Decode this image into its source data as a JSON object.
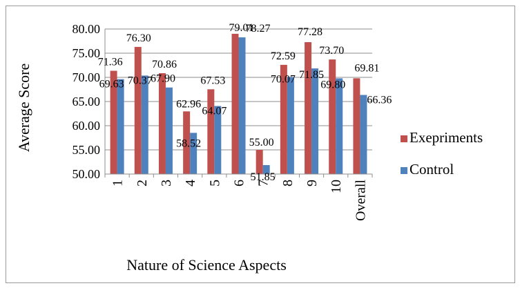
{
  "chart_data": {
    "type": "bar",
    "xlabel": "Nature of Science Aspects",
    "ylabel": "Average Score",
    "ylim": [
      50,
      80
    ],
    "yticks": [
      50,
      55,
      60,
      65,
      70,
      75,
      80
    ],
    "ytick_labels": [
      "50.00",
      "55.00",
      "60.00",
      "65.00",
      "70.00",
      "75.00",
      "80.00"
    ],
    "categories": [
      "1",
      "2",
      "3",
      "4",
      "5",
      "6",
      "7",
      "8",
      "9",
      "10",
      "Overall"
    ],
    "grid": true,
    "legend_position": "right",
    "series": [
      {
        "name": "Exepriments",
        "color": "#c0504d",
        "values": [
          71.36,
          76.3,
          70.86,
          62.96,
          67.53,
          79.01,
          55.0,
          72.59,
          77.28,
          73.7,
          69.81
        ],
        "labels": [
          "71.36",
          "76.30",
          "70.86",
          "62.96",
          "67.53",
          "79.01",
          "55.00",
          "72.59",
          "77.28",
          "73.70",
          "69.81"
        ]
      },
      {
        "name": "Control",
        "color": "#4f81bd",
        "values": [
          69.63,
          70.37,
          67.9,
          58.52,
          64.07,
          78.27,
          51.85,
          70.07,
          71.85,
          69.8,
          66.36
        ],
        "labels": [
          "69.63",
          "70.37",
          "67.90",
          "58.52",
          "64.07",
          "78.27",
          "51.85",
          "70.07",
          "71.85",
          "69.80",
          "66.36"
        ]
      }
    ]
  }
}
